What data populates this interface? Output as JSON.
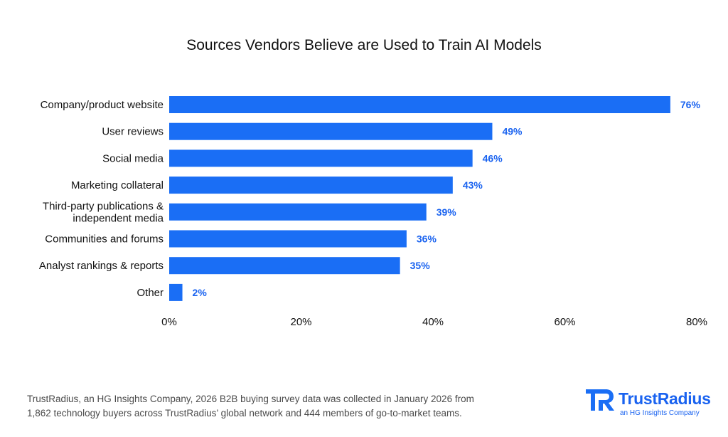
{
  "colors": {
    "bar": "#1a6ef5",
    "value_label": "#1a63f0",
    "text": "#111111",
    "footnote": "#4a4a4a"
  },
  "chart_data": {
    "type": "bar",
    "orientation": "horizontal",
    "title": "Sources Vendors Believe are Used to Train AI Models",
    "categories": [
      [
        "Company/product website"
      ],
      [
        "User reviews"
      ],
      [
        "Social media"
      ],
      [
        "Marketing collateral"
      ],
      [
        "Third-party publications &",
        "independent media"
      ],
      [
        "Communities and forums"
      ],
      [
        "Analyst rankings & reports"
      ],
      [
        "Other"
      ]
    ],
    "values": [
      76,
      49,
      46,
      43,
      39,
      36,
      35,
      2
    ],
    "value_labels": [
      "76%",
      "49%",
      "46%",
      "43%",
      "39%",
      "36%",
      "35%",
      "2%"
    ],
    "xlim": [
      0,
      80
    ],
    "x_ticks": [
      0,
      20,
      40,
      60,
      80
    ],
    "x_tick_labels": [
      "0%",
      "20%",
      "40%",
      "60%",
      "80%"
    ],
    "grid": false,
    "legend": "none"
  },
  "footnote": {
    "line1": "TrustRadius, an HG Insights Company, 2026 B2B buying survey data was collected in January 2026 from",
    "line2": "1,862 technology buyers across TrustRadius’ global network and 444 members of go-to-market teams."
  },
  "brand": {
    "name": "TrustRadius",
    "tagline": "an HG Insights Company",
    "icon": "trustradius-logo-icon"
  }
}
